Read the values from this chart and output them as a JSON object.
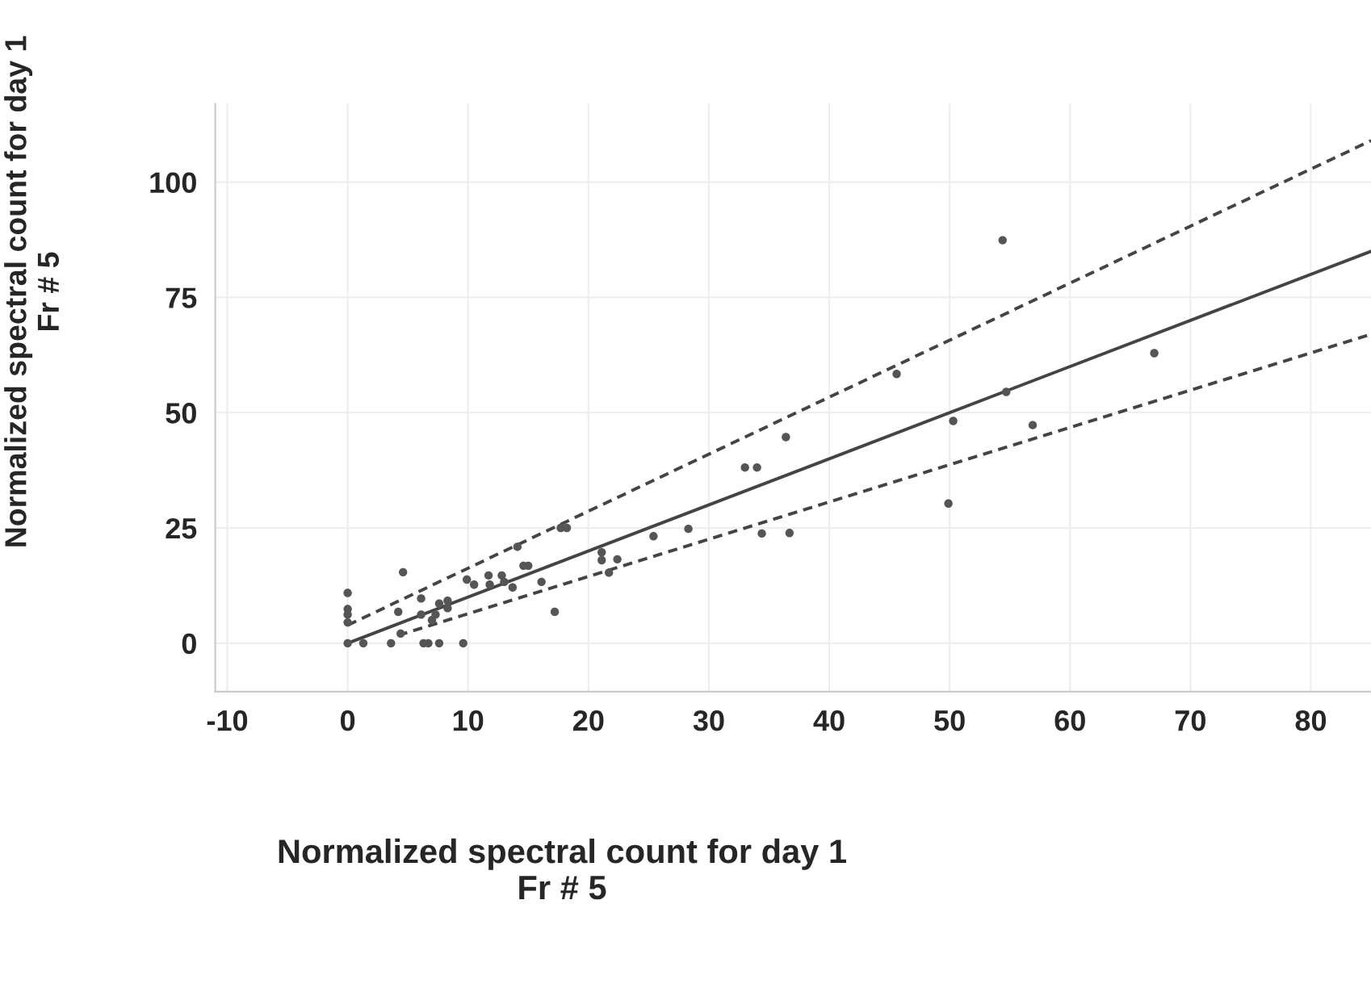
{
  "chart_data": {
    "type": "scatter",
    "xlabel": "Normalized spectral count for day 1\nFr # 5",
    "ylabel": "Normalized spectral count for day 1\nFr # 5",
    "xlim": [
      -11,
      85
    ],
    "ylim": [
      -10.5,
      117
    ],
    "xticks": [
      -10,
      0,
      10,
      20,
      30,
      40,
      50,
      60,
      70,
      80
    ],
    "yticks": [
      0,
      25,
      50,
      75,
      100
    ],
    "grid": true,
    "marker": "circle",
    "series": [
      {
        "color": "#555555",
        "x": [
          0,
          0,
          0,
          0,
          0,
          1.3,
          4.6,
          4.2,
          4.4,
          3.6,
          6.3,
          6.7,
          7.6,
          9.6,
          6.1,
          6.1,
          7,
          7.3,
          7.6,
          8.3,
          8.3,
          9.9,
          10.5,
          11.7,
          11.8,
          12.8,
          13,
          13.7,
          14.1,
          14.6,
          15,
          16.1,
          17.2,
          17.7,
          18.2,
          21.1,
          21.1,
          22.4,
          21.7,
          25.4,
          28.3,
          33,
          34,
          34.4,
          36.4,
          36.7,
          45.6,
          54.4,
          54.7,
          50.3,
          49.9,
          56.9,
          67
        ],
        "values": [
          10.9,
          7.4,
          6.2,
          4.5,
          0,
          0,
          15.4,
          6.8,
          2.1,
          0,
          0,
          0,
          0,
          0,
          9.7,
          6.2,
          5,
          6.2,
          8.6,
          9.2,
          7.6,
          13.8,
          12.7,
          14.7,
          12.7,
          14.7,
          13.3,
          12.1,
          20.9,
          16.8,
          16.8,
          13.3,
          6.8,
          25,
          25,
          19.7,
          18,
          18.2,
          15.3,
          23.2,
          24.8,
          38.1,
          38.1,
          23.8,
          44.7,
          23.9,
          58.4,
          87.4,
          54.5,
          48.2,
          30.3,
          47.3,
          62.9
        ]
      },
      {
        "type": "line",
        "color": "#444444",
        "line_style": "solid",
        "marker": "none",
        "x": [
          0,
          85
        ],
        "values": [
          0,
          85
        ]
      },
      {
        "type": "line",
        "color": "#444444",
        "line_style": "dashed",
        "marker": "none",
        "x": [
          0,
          85
        ],
        "values": [
          3.9,
          109
        ]
      },
      {
        "type": "line",
        "color": "#444444",
        "line_style": "dashed",
        "marker": "none",
        "x": [
          4.2,
          85
        ],
        "values": [
          1.7,
          67
        ]
      }
    ]
  }
}
